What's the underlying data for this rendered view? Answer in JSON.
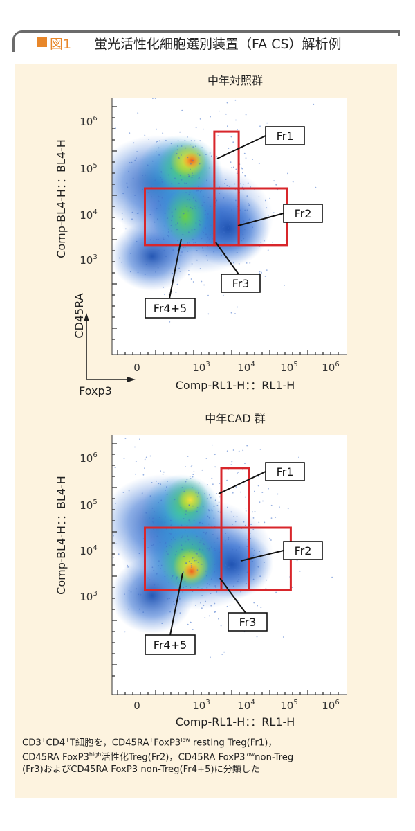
{
  "title": {
    "figure": "図1",
    "text": "蛍光活性化細胞選別装置（FA CS）解析例"
  },
  "chart_data": [
    {
      "type": "scatter",
      "title": "中年対照群",
      "xlabel": "Comp-RL1-H：：RL1-H",
      "ylabel": "Comp-BL4-H：：BL4-H",
      "x_ticks": [
        "0",
        "10^3",
        "10^4",
        "10^5",
        "10^6"
      ],
      "y_ticks": [
        "10^3",
        "10^4",
        "10^5",
        "10^6"
      ],
      "gates": [
        {
          "label": "Fr1",
          "x_min_log10": 3.2,
          "x_max_log10": 3.55,
          "y_min_log10": 4.45,
          "y_max_log10": 5.7
        },
        {
          "label": "Fr2",
          "x_min_log10": 3.55,
          "x_max_log10": 4.25,
          "y_min_log10": 3.2,
          "y_max_log10": 4.45
        },
        {
          "label": "Fr3",
          "x_min_log10": 3.2,
          "x_max_log10": 3.55,
          "y_min_log10": 3.2,
          "y_max_log10": 4.45
        },
        {
          "label": "Fr4+5",
          "x_min_log10": 2.2,
          "x_max_log10": 3.2,
          "y_min_log10": 3.2,
          "y_max_log10": 4.45
        }
      ],
      "inset_axes": {
        "y": "CD45RA",
        "x": "Foxp3"
      }
    },
    {
      "type": "scatter",
      "title": "中年CAD 群",
      "xlabel": "Comp-RL1-H：：RL1-H",
      "ylabel": "Comp-BL4-H：：BL4-H",
      "x_ticks": [
        "0",
        "10^3",
        "10^4",
        "10^5",
        "10^6"
      ],
      "y_ticks": [
        "10^3",
        "10^4",
        "10^5",
        "10^6"
      ],
      "gates": [
        {
          "label": "Fr1",
          "x_min_log10": 3.3,
          "x_max_log10": 3.7,
          "y_min_log10": 4.45,
          "y_max_log10": 5.75
        },
        {
          "label": "Fr2",
          "x_min_log10": 3.7,
          "x_max_log10": 4.3,
          "y_min_log10": 3.1,
          "y_max_log10": 4.45
        },
        {
          "label": "Fr3",
          "x_min_log10": 3.3,
          "x_max_log10": 3.7,
          "y_min_log10": 3.1,
          "y_max_log10": 4.45
        },
        {
          "label": "Fr4+5",
          "x_min_log10": 2.2,
          "x_max_log10": 3.3,
          "y_min_log10": 3.1,
          "y_max_log10": 4.45
        }
      ]
    }
  ],
  "caption": {
    "line1_a": "CD3",
    "line1_b": "CD4",
    "line1_c": "T細胞を，CD45RA",
    "line1_d": "FoxP3",
    "line1_e": " resting Treg(Fr1)，",
    "line2_a": "CD45RA  FoxP3",
    "line2_b": "活性化Treg(Fr2)，CD45RA  FoxP3",
    "line2_c": "non-Treg",
    "line3": "(Fr3)およびCD45RA  FoxP3  non-Treg(Fr4+5)に分類した",
    "sup_plus": "+",
    "sup_low": "low",
    "sup_high": "high"
  },
  "colors": {
    "accent": "#e8872a",
    "gate": "#d8262b",
    "panel_bg": "#fdf3df"
  }
}
